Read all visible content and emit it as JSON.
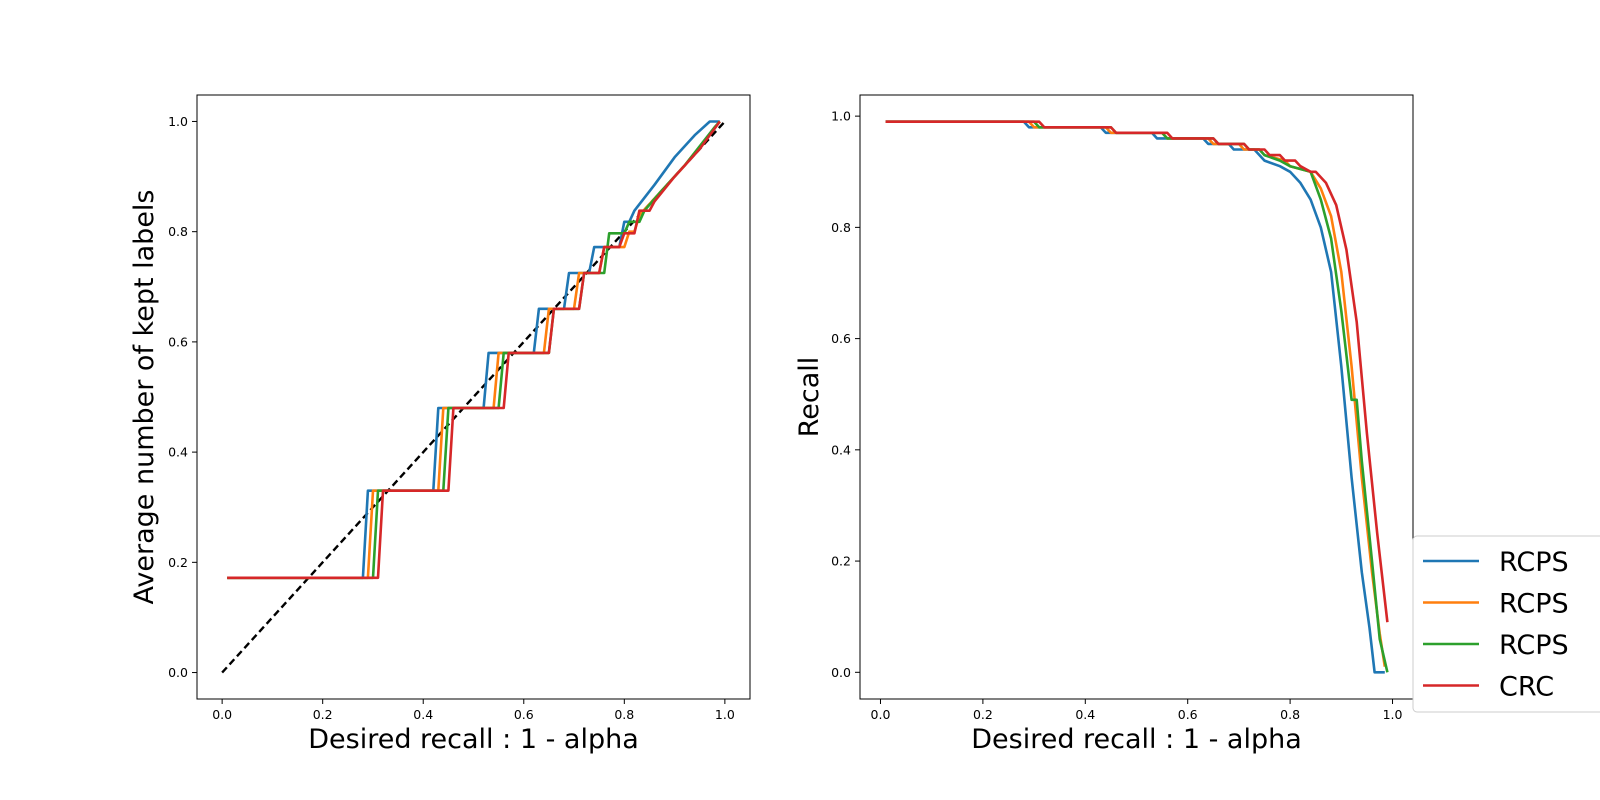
{
  "colors": {
    "series1": "#1f77b4",
    "series2": "#ff7f0e",
    "series3": "#2ca02c",
    "series4": "#d62728",
    "reference": "#000000"
  },
  "legend": {
    "position": "bottom-right, partially cut off at right edge of figure",
    "entries": [
      {
        "label": "RCPS",
        "color": "#1f77b4"
      },
      {
        "label": "RCPS",
        "color": "#ff7f0e"
      },
      {
        "label": "RCPS",
        "color": "#2ca02c"
      },
      {
        "label": "CRC",
        "color": "#d62728"
      }
    ]
  },
  "chart_data": [
    {
      "type": "line",
      "title": "",
      "xlabel": "Desired recall : 1 - alpha",
      "ylabel": "Average number of kept labels",
      "xlim": [
        -0.05,
        1.05
      ],
      "ylim": [
        -0.048,
        1.048
      ],
      "xticks": [
        0.0,
        0.2,
        0.4,
        0.6,
        0.8,
        1.0
      ],
      "xtick_labels": [
        "0.0",
        "0.2",
        "0.4",
        "0.6",
        "0.8",
        "1.0"
      ],
      "yticks": [
        0.0,
        0.2,
        0.4,
        0.6,
        0.8,
        1.0
      ],
      "ytick_labels": [
        "0.0",
        "0.2",
        "0.4",
        "0.6",
        "0.8",
        "1.0"
      ],
      "grid": false,
      "reference_line": {
        "x": [
          0.0,
          1.0
        ],
        "y": [
          0.0,
          1.0
        ],
        "style": "dashed",
        "color": "#000000"
      },
      "series": [
        {
          "color": "#1f77b4",
          "x": [
            0.01,
            0.28,
            0.29,
            0.42,
            0.43,
            0.52,
            0.53,
            0.62,
            0.63,
            0.68,
            0.69,
            0.73,
            0.74,
            0.79,
            0.8,
            0.81,
            0.82,
            0.86,
            0.9,
            0.94,
            0.97,
            0.99
          ],
          "y": [
            0.172,
            0.172,
            0.33,
            0.33,
            0.48,
            0.48,
            0.58,
            0.58,
            0.66,
            0.66,
            0.725,
            0.725,
            0.772,
            0.772,
            0.818,
            0.818,
            0.838,
            0.885,
            0.935,
            0.975,
            1.0,
            1.0
          ]
        },
        {
          "color": "#ff7f0e",
          "x": [
            0.01,
            0.29,
            0.3,
            0.43,
            0.44,
            0.54,
            0.55,
            0.64,
            0.65,
            0.7,
            0.71,
            0.75,
            0.76,
            0.8,
            0.81,
            0.82,
            0.83,
            0.87,
            0.92,
            0.99
          ],
          "y": [
            0.172,
            0.172,
            0.33,
            0.33,
            0.48,
            0.48,
            0.58,
            0.58,
            0.66,
            0.66,
            0.725,
            0.725,
            0.772,
            0.772,
            0.8,
            0.8,
            0.83,
            0.87,
            0.92,
            1.0
          ]
        },
        {
          "color": "#2ca02c",
          "x": [
            0.01,
            0.3,
            0.31,
            0.44,
            0.45,
            0.55,
            0.56,
            0.65,
            0.66,
            0.71,
            0.72,
            0.76,
            0.77,
            0.8,
            0.81,
            0.83,
            0.84,
            0.87,
            0.92,
            0.98,
            0.99
          ],
          "y": [
            0.172,
            0.172,
            0.33,
            0.33,
            0.48,
            0.48,
            0.58,
            0.58,
            0.66,
            0.66,
            0.725,
            0.725,
            0.797,
            0.797,
            0.818,
            0.818,
            0.838,
            0.87,
            0.92,
            0.99,
            1.0
          ]
        },
        {
          "color": "#d62728",
          "x": [
            0.01,
            0.31,
            0.32,
            0.45,
            0.46,
            0.56,
            0.57,
            0.65,
            0.66,
            0.71,
            0.72,
            0.75,
            0.76,
            0.79,
            0.8,
            0.82,
            0.83,
            0.85,
            0.86,
            0.9,
            0.95,
            0.99
          ],
          "y": [
            0.172,
            0.172,
            0.33,
            0.33,
            0.48,
            0.48,
            0.58,
            0.58,
            0.66,
            0.66,
            0.725,
            0.725,
            0.772,
            0.772,
            0.797,
            0.797,
            0.838,
            0.838,
            0.855,
            0.9,
            0.95,
            1.0
          ]
        }
      ]
    },
    {
      "type": "line",
      "title": "",
      "xlabel": "Desired recall : 1 - alpha",
      "ylabel": "Recall",
      "xlim": [
        -0.04,
        1.04
      ],
      "ylim": [
        -0.048,
        1.038
      ],
      "xticks": [
        0.0,
        0.2,
        0.4,
        0.6,
        0.8,
        1.0
      ],
      "xtick_labels": [
        "0.0",
        "0.2",
        "0.4",
        "0.6",
        "0.8",
        "1.0"
      ],
      "yticks": [
        0.0,
        0.2,
        0.4,
        0.6,
        0.8,
        1.0
      ],
      "ytick_labels": [
        "0.0",
        "0.2",
        "0.4",
        "0.6",
        "0.8",
        "1.0"
      ],
      "grid": false,
      "series": [
        {
          "color": "#1f77b4",
          "x": [
            0.01,
            0.28,
            0.29,
            0.43,
            0.44,
            0.53,
            0.54,
            0.63,
            0.64,
            0.68,
            0.69,
            0.73,
            0.75,
            0.78,
            0.8,
            0.82,
            0.84,
            0.86,
            0.88,
            0.9,
            0.92,
            0.94,
            0.955,
            0.965,
            0.975,
            0.985
          ],
          "y": [
            0.99,
            0.99,
            0.98,
            0.98,
            0.97,
            0.97,
            0.96,
            0.96,
            0.95,
            0.95,
            0.94,
            0.94,
            0.92,
            0.91,
            0.9,
            0.88,
            0.85,
            0.8,
            0.72,
            0.55,
            0.35,
            0.18,
            0.08,
            0.0,
            0.0,
            0.0
          ]
        },
        {
          "color": "#ff7f0e",
          "x": [
            0.01,
            0.29,
            0.3,
            0.44,
            0.45,
            0.55,
            0.56,
            0.64,
            0.65,
            0.7,
            0.71,
            0.74,
            0.75,
            0.79,
            0.8,
            0.84,
            0.86,
            0.88,
            0.9,
            0.92,
            0.94,
            0.96,
            0.975,
            0.985
          ],
          "y": [
            0.99,
            0.99,
            0.98,
            0.98,
            0.97,
            0.97,
            0.96,
            0.96,
            0.95,
            0.95,
            0.94,
            0.94,
            0.93,
            0.92,
            0.91,
            0.9,
            0.87,
            0.82,
            0.72,
            0.55,
            0.35,
            0.18,
            0.07,
            0.01
          ]
        },
        {
          "color": "#2ca02c",
          "x": [
            0.01,
            0.3,
            0.31,
            0.45,
            0.46,
            0.55,
            0.56,
            0.65,
            0.66,
            0.71,
            0.72,
            0.74,
            0.75,
            0.78,
            0.8,
            0.84,
            0.86,
            0.88,
            0.9,
            0.92,
            0.93,
            0.94,
            0.96,
            0.975,
            0.99
          ],
          "y": [
            0.99,
            0.99,
            0.98,
            0.98,
            0.97,
            0.97,
            0.96,
            0.96,
            0.95,
            0.95,
            0.94,
            0.94,
            0.93,
            0.92,
            0.91,
            0.9,
            0.85,
            0.78,
            0.65,
            0.49,
            0.49,
            0.38,
            0.2,
            0.06,
            0.0
          ]
        },
        {
          "color": "#d62728",
          "x": [
            0.01,
            0.31,
            0.32,
            0.45,
            0.46,
            0.56,
            0.57,
            0.65,
            0.66,
            0.71,
            0.72,
            0.75,
            0.76,
            0.78,
            0.79,
            0.81,
            0.82,
            0.84,
            0.85,
            0.87,
            0.89,
            0.91,
            0.93,
            0.95,
            0.97,
            0.99
          ],
          "y": [
            0.99,
            0.99,
            0.98,
            0.98,
            0.97,
            0.97,
            0.96,
            0.96,
            0.95,
            0.95,
            0.94,
            0.94,
            0.93,
            0.93,
            0.92,
            0.92,
            0.91,
            0.9,
            0.9,
            0.88,
            0.84,
            0.76,
            0.63,
            0.43,
            0.25,
            0.09
          ]
        }
      ]
    }
  ]
}
